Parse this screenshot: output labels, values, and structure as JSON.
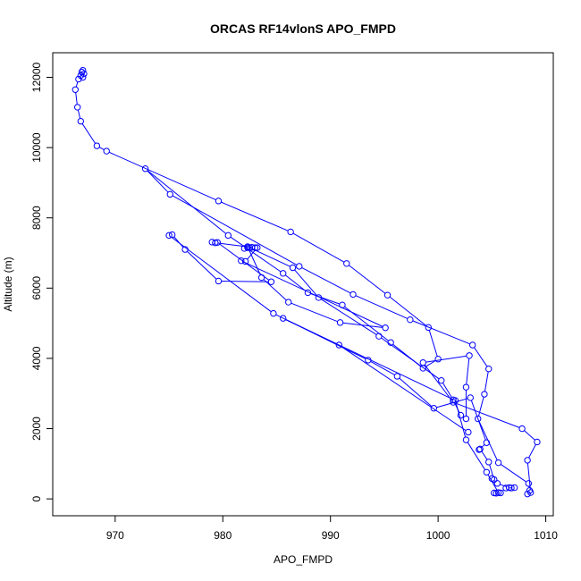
{
  "chart_data": {
    "type": "line",
    "title": "ORCAS RF14vlonS APO_FMPD",
    "xlabel": "APO_FMPD",
    "ylabel": "Altitude (m)",
    "xlim": [
      964.2,
      1010.7
    ],
    "ylim": [
      -480,
      12700
    ],
    "xticks": [
      970,
      980,
      990,
      1000,
      1010
    ],
    "yticks": [
      0,
      2000,
      4000,
      6000,
      8000,
      10000,
      12000
    ],
    "grid": false,
    "legend": "none",
    "marker": "open-circle",
    "color": "#0000ff",
    "series": [
      {
        "points": [
          [
            967.0,
            12200
          ],
          [
            966.9,
            12150
          ],
          [
            967.1,
            12100
          ],
          [
            966.8,
            12050
          ],
          [
            967.0,
            12000
          ],
          [
            966.6,
            11950
          ],
          [
            966.3,
            11650
          ],
          [
            966.5,
            11150
          ],
          [
            966.8,
            10750
          ],
          [
            968.3,
            10050
          ],
          [
            969.2,
            9900
          ],
          [
            979.6,
            8480
          ],
          [
            986.3,
            7600
          ],
          [
            991.5,
            6700
          ],
          [
            995.3,
            5800
          ],
          [
            999.1,
            4880
          ],
          [
            1000.0,
            3980
          ],
          [
            998.6,
            3720
          ],
          [
            995.6,
            4450
          ],
          [
            991.1,
            5520
          ],
          [
            987.9,
            5870
          ],
          [
            985.6,
            6420
          ],
          [
            980.5,
            7500
          ],
          [
            972.8,
            9400
          ],
          [
            975.1,
            8670
          ],
          [
            987.1,
            6620
          ],
          [
            992.1,
            5820
          ],
          [
            997.4,
            5100
          ],
          [
            1003.2,
            4380
          ],
          [
            1004.7,
            3700
          ],
          [
            1004.3,
            2980
          ],
          [
            1003.7,
            2280
          ],
          [
            1005.6,
            1030
          ],
          [
            1008.4,
            440
          ],
          [
            1008.5,
            240
          ],
          [
            1008.3,
            140
          ],
          [
            1008.6,
            180
          ],
          [
            1008.3,
            1100
          ],
          [
            1009.2,
            1620
          ],
          [
            1007.8,
            2000
          ],
          [
            1001.4,
            2750
          ],
          [
            998.6,
            3880
          ],
          [
            1002.9,
            4080
          ],
          [
            1002.6,
            3180
          ],
          [
            1002.6,
            2280
          ],
          [
            1002.1,
            2380
          ],
          [
            1001.4,
            2820
          ],
          [
            1000.3,
            3370
          ],
          [
            994.5,
            4630
          ],
          [
            988.9,
            5730
          ],
          [
            986.5,
            6580
          ],
          [
            982.3,
            7180
          ],
          [
            983.6,
            6300
          ],
          [
            986.1,
            5600
          ],
          [
            990.9,
            5020
          ],
          [
            995.1,
            4870
          ],
          [
            981.7,
            6780
          ],
          [
            982.1,
            6760
          ],
          [
            983.2,
            7150
          ],
          [
            982.7,
            7160
          ],
          [
            982.3,
            7150
          ],
          [
            982.0,
            7130
          ],
          [
            982.5,
            7150
          ],
          [
            983.0,
            7150
          ],
          [
            979.3,
            7290
          ],
          [
            979.0,
            7310
          ],
          [
            979.5,
            7300
          ],
          [
            984.5,
            6180
          ],
          [
            979.6,
            6200
          ],
          [
            976.5,
            7100
          ],
          [
            975.3,
            7520
          ],
          [
            975.0,
            7500
          ],
          [
            984.7,
            5280
          ],
          [
            993.5,
            3950
          ],
          [
            996.2,
            3490
          ],
          [
            999.6,
            2580
          ],
          [
            1003.0,
            2880
          ],
          [
            1004.5,
            1600
          ],
          [
            1003.8,
            1400
          ],
          [
            1003.9,
            1420
          ],
          [
            1004.7,
            1050
          ],
          [
            1005.2,
            550
          ],
          [
            1005.0,
            580
          ],
          [
            1005.5,
            440
          ],
          [
            1006.6,
            320
          ],
          [
            1006.8,
            310
          ],
          [
            1007.1,
            320
          ],
          [
            1006.3,
            310
          ],
          [
            1005.8,
            170
          ],
          [
            1005.4,
            160
          ],
          [
            1005.2,
            170
          ],
          [
            1005.6,
            180
          ],
          [
            1004.5,
            760
          ],
          [
            1002.6,
            1680
          ],
          [
            1001.6,
            2800
          ],
          [
            985.6,
            5140
          ],
          [
            990.8,
            4380
          ],
          [
            1002.8,
            1900
          ]
        ]
      }
    ]
  }
}
